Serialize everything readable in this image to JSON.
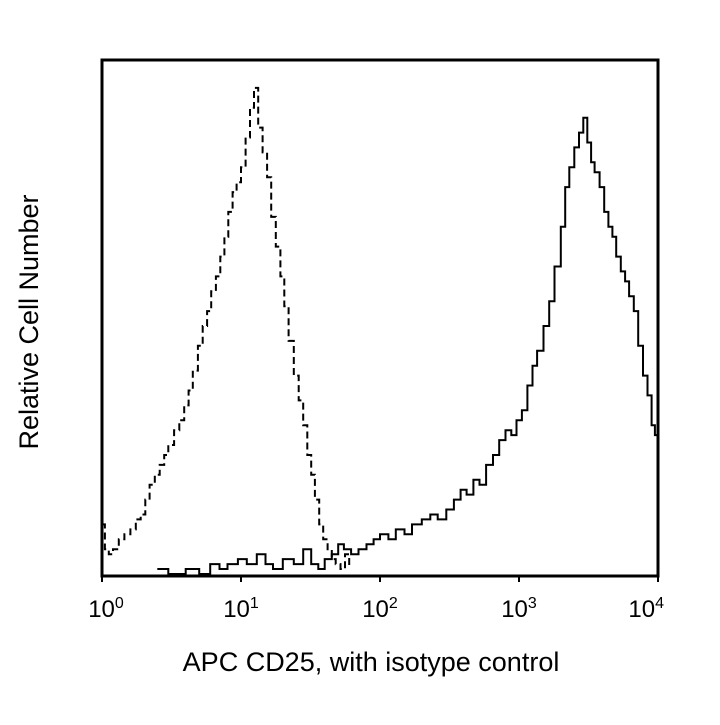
{
  "chart_data": {
    "type": "line",
    "xscale": "log",
    "xlim": [
      1,
      10000
    ],
    "ylim": [
      0,
      1
    ],
    "grid": false,
    "legend": "none",
    "xlabel": "APC CD25, with isotype control",
    "ylabel": "Relative Cell Number",
    "xticks": [
      {
        "base": "10",
        "exp": "0",
        "value": 1
      },
      {
        "base": "10",
        "exp": "1",
        "value": 10
      },
      {
        "base": "10",
        "exp": "2",
        "value": 100
      },
      {
        "base": "10",
        "exp": "3",
        "value": 1000
      },
      {
        "base": "10",
        "exp": "4",
        "value": 10000
      }
    ],
    "series": [
      {
        "style": "dashed",
        "color": "#000000",
        "x": [
          1.0,
          1.05,
          1.12,
          1.2,
          1.32,
          1.45,
          1.6,
          1.75,
          1.9,
          2.05,
          2.2,
          2.4,
          2.6,
          2.8,
          3.0,
          3.3,
          3.6,
          3.9,
          4.2,
          4.5,
          4.9,
          5.3,
          5.7,
          6.1,
          6.6,
          7.1,
          7.6,
          8.1,
          8.7,
          9.3,
          10.0,
          10.8,
          11.6,
          12.4,
          13.3,
          14.3,
          15.4,
          16.5,
          17.8,
          19.2,
          20.5,
          22.0,
          24.0,
          26.0,
          28.0,
          30.0,
          32.0,
          34.0,
          36.5,
          39.0,
          42.0,
          45.0,
          48.0,
          52.0,
          56.0,
          60.0
        ],
        "y": [
          0.1,
          0.05,
          0.04,
          0.05,
          0.07,
          0.08,
          0.09,
          0.11,
          0.12,
          0.15,
          0.18,
          0.2,
          0.22,
          0.24,
          0.26,
          0.29,
          0.31,
          0.34,
          0.37,
          0.41,
          0.46,
          0.5,
          0.53,
          0.57,
          0.6,
          0.64,
          0.68,
          0.73,
          0.77,
          0.79,
          0.82,
          0.88,
          0.94,
          0.98,
          0.9,
          0.85,
          0.8,
          0.72,
          0.66,
          0.6,
          0.54,
          0.47,
          0.4,
          0.35,
          0.3,
          0.24,
          0.2,
          0.15,
          0.1,
          0.07,
          0.05,
          0.03,
          0.02,
          0.01,
          0.04,
          0.01
        ]
      },
      {
        "style": "solid",
        "color": "#000000",
        "x": [
          2.5,
          3.0,
          4.0,
          5.0,
          6.0,
          7.0,
          8.0,
          9.5,
          11.0,
          13.0,
          15.0,
          17.0,
          20.0,
          24.0,
          28.0,
          32.0,
          36.0,
          40.0,
          45.0,
          50.0,
          55.0,
          62.0,
          70.0,
          80.0,
          90.0,
          100.0,
          115.0,
          130.0,
          150.0,
          170.0,
          200.0,
          230.0,
          260.0,
          300.0,
          340.0,
          380.0,
          420.0,
          470.0,
          520.0,
          580.0,
          650.0,
          720.0,
          800.0,
          880.0,
          960.0,
          1050.0,
          1150.0,
          1250.0,
          1350.0,
          1500.0,
          1650.0,
          1800.0,
          2000.0,
          2150.0,
          2300.0,
          2500.0,
          2700.0,
          2900.0,
          3100.0,
          3300.0,
          3500.0,
          3800.0,
          4100.0,
          4400.0,
          4700.0,
          5000.0,
          5400.0,
          5800.0,
          6200.0,
          6700.0,
          7200.0,
          7800.0,
          8400.0,
          9000.0,
          9500.0,
          10000.0
        ],
        "y": [
          0.01,
          0.0,
          0.01,
          0.0,
          0.02,
          0.01,
          0.02,
          0.03,
          0.02,
          0.04,
          0.02,
          0.01,
          0.03,
          0.02,
          0.05,
          0.02,
          0.01,
          0.03,
          0.04,
          0.06,
          0.05,
          0.04,
          0.05,
          0.06,
          0.07,
          0.08,
          0.07,
          0.09,
          0.08,
          0.1,
          0.11,
          0.12,
          0.11,
          0.13,
          0.15,
          0.17,
          0.16,
          0.19,
          0.18,
          0.22,
          0.24,
          0.27,
          0.29,
          0.28,
          0.31,
          0.33,
          0.38,
          0.42,
          0.45,
          0.5,
          0.55,
          0.62,
          0.7,
          0.78,
          0.82,
          0.86,
          0.89,
          0.92,
          0.87,
          0.83,
          0.81,
          0.78,
          0.73,
          0.7,
          0.68,
          0.64,
          0.61,
          0.59,
          0.56,
          0.53,
          0.46,
          0.4,
          0.36,
          0.3,
          0.28,
          0.25
        ]
      }
    ]
  }
}
